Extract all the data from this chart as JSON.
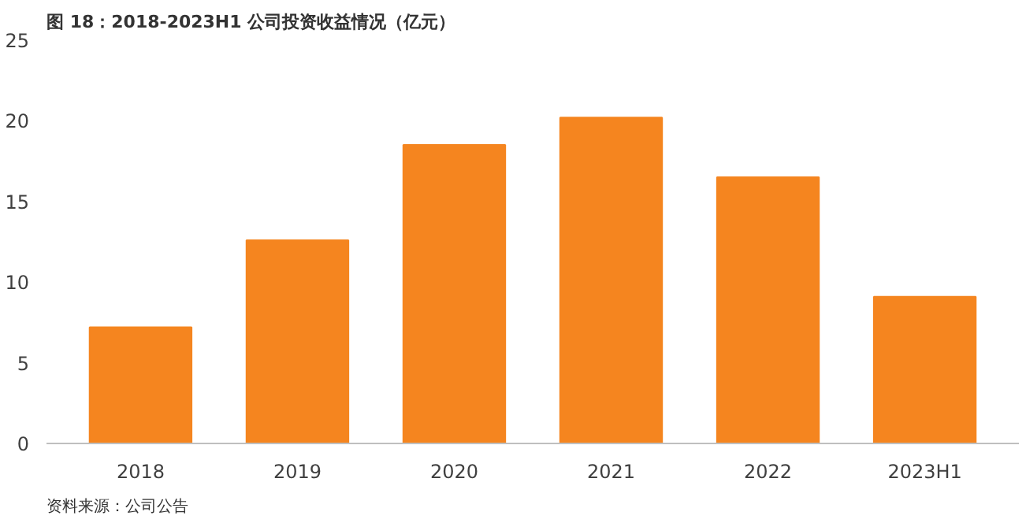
{
  "chart_data": {
    "type": "bar",
    "title": "图 18：2018-2023H1 公司投资收益情况（亿元）",
    "categories": [
      "2018",
      "2019",
      "2020",
      "2021",
      "2022",
      "2023H1"
    ],
    "values": [
      7.2,
      12.6,
      18.5,
      20.2,
      16.5,
      9.1
    ],
    "color": "#f5851f",
    "ylim": [
      0,
      25
    ],
    "yticks": [
      0,
      5,
      10,
      15,
      20,
      25
    ],
    "grid": false,
    "annotations": [
      "资料来源：公司公告"
    ]
  }
}
